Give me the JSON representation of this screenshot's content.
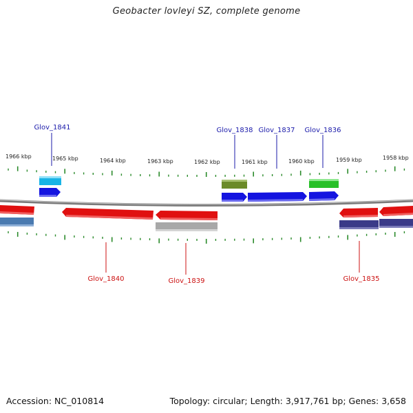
{
  "title": "Geobacter lovleyi SZ, complete genome",
  "accession": "Accession: NC_010814",
  "topology": "Topology: circular; Length: 3,917,761 bp; Genes: 3,658",
  "colors": {
    "ruler_ticks": "#2a8a2a",
    "backbone": "#8a8a8a",
    "forward_label": "#1a1aaa",
    "reverse_label": "#cc1111"
  },
  "ruler_labels": [
    "1966 kbp",
    "1965 kbp",
    "1964 kbp",
    "1963 kbp",
    "1962 kbp",
    "1961 kbp",
    "1960 kbp",
    "1959 kbp",
    "1958 kbp"
  ],
  "gene_labels": {
    "g1841": "Glov_1841",
    "g1838": "Glov_1838",
    "g1837": "Glov_1837",
    "g1836": "Glov_1836",
    "g1840": "Glov_1840",
    "g1839": "Glov_1839",
    "g1835": "Glov_1835"
  }
}
